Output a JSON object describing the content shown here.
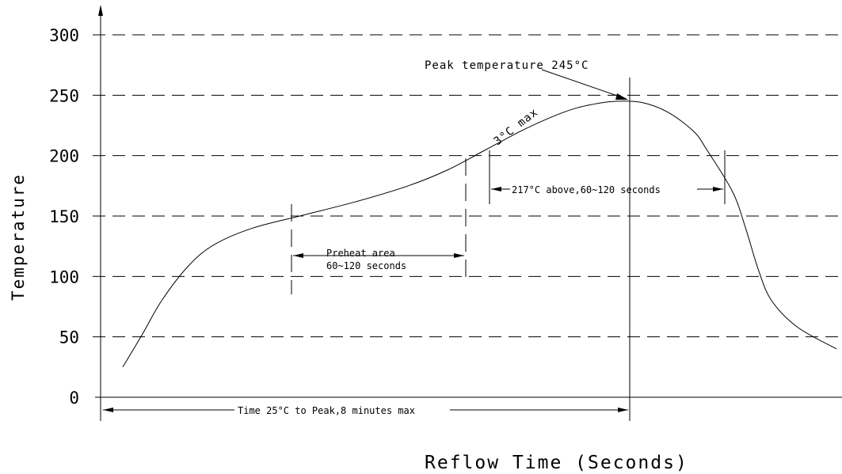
{
  "chart_data": {
    "type": "line",
    "ylabel": "Temperature",
    "xlabel": "Reflow Time (Seconds)",
    "y_ticks": [
      "0",
      "50",
      "100",
      "150",
      "200",
      "250",
      "300"
    ],
    "ylim": [
      0,
      300
    ],
    "grid": "horizontal dashed",
    "series": [
      {
        "points": [
          [
            0.0,
            25
          ],
          [
            0.03,
            52
          ],
          [
            0.06,
            80
          ],
          [
            0.1,
            108
          ],
          [
            0.14,
            126
          ],
          [
            0.2,
            140
          ],
          [
            0.28,
            151
          ],
          [
            0.36,
            162
          ],
          [
            0.44,
            175
          ],
          [
            0.5,
            188
          ],
          [
            0.56,
            205
          ],
          [
            0.62,
            222
          ],
          [
            0.68,
            236
          ],
          [
            0.72,
            242
          ],
          [
            0.76,
            245
          ],
          [
            0.8,
            244
          ],
          [
            0.84,
            236
          ],
          [
            0.88,
            220
          ],
          [
            0.9,
            205
          ],
          [
            0.94,
            170
          ],
          [
            0.96,
            140
          ],
          [
            0.98,
            105
          ],
          [
            1.0,
            80
          ],
          [
            1.04,
            58
          ],
          [
            1.1,
            40
          ]
        ]
      }
    ],
    "annotations": {
      "peak": "Peak temperature 245°C",
      "ramp": "3°C max",
      "above": "217°C above,60~120 seconds",
      "preheat_line1": "Preheat area",
      "preheat_line2": "60~120 seconds",
      "time_to_peak": "Time 25°C to Peak,8 minutes max"
    }
  }
}
